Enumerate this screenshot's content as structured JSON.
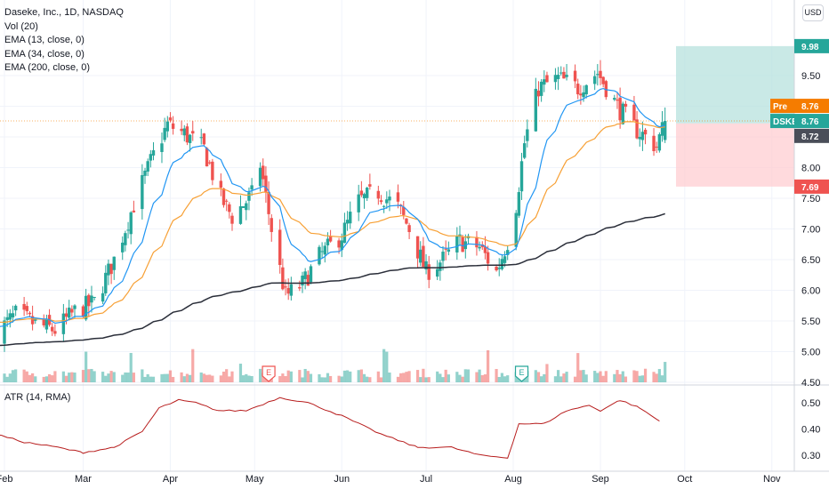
{
  "legend": {
    "title": "Daseke, Inc., 1D, NASDAQ",
    "vol": "Vol (20)",
    "ema13": "EMA (13, close, 0)",
    "ema34": "EMA (34, close, 0)",
    "ema200": "EMA (200, close, 0)",
    "atr": "ATR (14, RMA)"
  },
  "currency": "USD",
  "colors": {
    "up": "#26a69a",
    "down": "#ef5350",
    "ema13": "#2196f3",
    "ema34": "#f7a035",
    "ema200": "#2a2e39",
    "atr": "#b71c1c",
    "target": "#b2dfdb",
    "stop": "#ffcdd2",
    "pre": "#f57c00"
  },
  "chart_data": [
    {
      "type": "candlestick",
      "title": "Daseke, Inc., 1D, NASDAQ",
      "xlabel": "",
      "ylabel": "",
      "x_ticks": [
        "Feb",
        "Mar",
        "Apr",
        "May",
        "Jun",
        "Jul",
        "Aug",
        "Sep",
        "Oct",
        "Nov"
      ],
      "y_ticks": [
        "4.50",
        "5.00",
        "5.50",
        "6.00",
        "6.50",
        "7.00",
        "7.50",
        "8.00",
        "8.50",
        "9.00",
        "9.50"
      ],
      "ylim": [
        4.5,
        10.2
      ],
      "close_anchors": [
        {
          "date": "Jan 29",
          "close": 5.3
        },
        {
          "date": "Feb 5",
          "close": 5.6
        },
        {
          "date": "Feb 12",
          "close": 5.45
        },
        {
          "date": "Feb 19",
          "close": 5.35
        },
        {
          "date": "Feb 26",
          "close": 5.65
        },
        {
          "date": "Mar 5",
          "close": 5.8
        },
        {
          "date": "Mar 12",
          "close": 6.5
        },
        {
          "date": "Mar 19",
          "close": 7.4
        },
        {
          "date": "Mar 26",
          "close": 8.2
        },
        {
          "date": "Mar 31",
          "close": 8.7
        },
        {
          "date": "Apr 6",
          "close": 8.55
        },
        {
          "date": "Apr 13",
          "close": 8.3
        },
        {
          "date": "Apr 19",
          "close": 7.5
        },
        {
          "date": "Apr 23",
          "close": 7.2
        },
        {
          "date": "Apr 30",
          "close": 7.55
        },
        {
          "date": "May 3",
          "close": 8.05
        },
        {
          "date": "May 7",
          "close": 7.0
        },
        {
          "date": "May 12",
          "close": 5.9
        },
        {
          "date": "May 18",
          "close": 6.1
        },
        {
          "date": "May 24",
          "close": 6.55
        },
        {
          "date": "Jun 1",
          "close": 6.9
        },
        {
          "date": "Jun 7",
          "close": 7.45
        },
        {
          "date": "Jun 14",
          "close": 7.6
        },
        {
          "date": "Jun 21",
          "close": 7.35
        },
        {
          "date": "Jun 25",
          "close": 7.0
        },
        {
          "date": "Jul 1",
          "close": 6.3
        },
        {
          "date": "Jul 7",
          "close": 6.5
        },
        {
          "date": "Jul 13",
          "close": 6.8
        },
        {
          "date": "Jul 20",
          "close": 6.7
        },
        {
          "date": "Jul 26",
          "close": 6.3
        },
        {
          "date": "Jul 30",
          "close": 6.8
        },
        {
          "date": "Aug 2",
          "close": 7.4
        },
        {
          "date": "Aug 5",
          "close": 8.4
        },
        {
          "date": "Aug 10",
          "close": 9.3
        },
        {
          "date": "Aug 17",
          "close": 9.45
        },
        {
          "date": "Aug 24",
          "close": 9.3
        },
        {
          "date": "Aug 31",
          "close": 9.55
        },
        {
          "date": "Sep 7",
          "close": 9.0
        },
        {
          "date": "Sep 13",
          "close": 8.65
        },
        {
          "date": "Sep 17",
          "close": 8.5
        },
        {
          "date": "Sep 21",
          "close": 8.35
        },
        {
          "date": "Sep 24",
          "close": 8.76
        }
      ],
      "last_price": {
        "label": "DSKE",
        "value": "8.76"
      },
      "pre_market": {
        "label": "Pre",
        "value": "8.76"
      },
      "entry": "8.72",
      "target": "9.98",
      "stop": "7.69",
      "earnings_markers": [
        {
          "date": "May 6",
          "label": "E"
        },
        {
          "date": "Aug 4",
          "label": "E"
        }
      ],
      "series": [
        {
          "name": "Vol (20)"
        },
        {
          "name": "EMA (13, close, 0)"
        },
        {
          "name": "EMA (34, close, 0)"
        },
        {
          "name": "EMA (200, close, 0)"
        }
      ]
    },
    {
      "type": "line",
      "title": "ATR (14, RMA)",
      "y_ticks": [
        "0.30",
        "0.40",
        "0.50"
      ],
      "ylim": [
        0.27,
        0.53
      ],
      "points": [
        {
          "date": "Jan 29",
          "value": 0.38
        },
        {
          "date": "Feb 8",
          "value": 0.35
        },
        {
          "date": "Feb 20",
          "value": 0.33
        },
        {
          "date": "Mar 1",
          "value": 0.31
        },
        {
          "date": "Mar 12",
          "value": 0.33
        },
        {
          "date": "Mar 22",
          "value": 0.39
        },
        {
          "date": "Mar 28",
          "value": 0.48
        },
        {
          "date": "Apr 4",
          "value": 0.51
        },
        {
          "date": "Apr 10",
          "value": 0.5
        },
        {
          "date": "Apr 18",
          "value": 0.47
        },
        {
          "date": "Apr 28",
          "value": 0.47
        },
        {
          "date": "May 10",
          "value": 0.52
        },
        {
          "date": "May 20",
          "value": 0.5
        },
        {
          "date": "Jun 1",
          "value": 0.45
        },
        {
          "date": "Jun 15",
          "value": 0.38
        },
        {
          "date": "Jun 28",
          "value": 0.33
        },
        {
          "date": "Jul 10",
          "value": 0.33
        },
        {
          "date": "Jul 20",
          "value": 0.3
        },
        {
          "date": "Jul 30",
          "value": 0.29
        },
        {
          "date": "Aug 3",
          "value": 0.42
        },
        {
          "date": "Aug 12",
          "value": 0.42
        },
        {
          "date": "Aug 20",
          "value": 0.47
        },
        {
          "date": "Aug 28",
          "value": 0.49
        },
        {
          "date": "Sep 1",
          "value": 0.47
        },
        {
          "date": "Sep 8",
          "value": 0.51
        },
        {
          "date": "Sep 15",
          "value": 0.48
        },
        {
          "date": "Sep 22",
          "value": 0.43
        }
      ]
    }
  ]
}
